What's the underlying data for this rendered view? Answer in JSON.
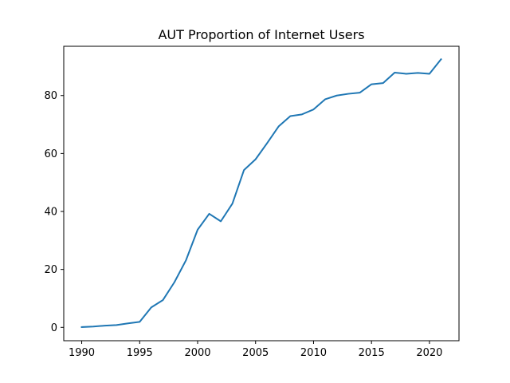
{
  "chart_data": {
    "type": "line",
    "title": "AUT Proportion of Internet Users",
    "xlabel": "",
    "ylabel": "",
    "xlim": [
      1988.45,
      2022.55
    ],
    "ylim": [
      -4.6,
      97.0
    ],
    "xticks": [
      1990,
      1995,
      2000,
      2005,
      2010,
      2015,
      2020
    ],
    "yticks": [
      0,
      20,
      40,
      60,
      80
    ],
    "grid": false,
    "legend": "none",
    "line_color": "#1f77b4",
    "series": [
      {
        "x": [
          1990,
          1991,
          1992,
          1993,
          1994,
          1995,
          1996,
          1997,
          1998,
          1999,
          2000,
          2001,
          2002,
          2003,
          2004,
          2005,
          2006,
          2007,
          2008,
          2009,
          2010,
          2011,
          2012,
          2013,
          2014,
          2015,
          2016,
          2017,
          2018,
          2019,
          2020,
          2021
        ],
        "y": [
          0.1,
          0.3,
          0.6,
          0.8,
          1.4,
          1.9,
          6.9,
          9.4,
          15.6,
          23.2,
          33.7,
          39.2,
          36.6,
          42.7,
          54.3,
          58.0,
          63.6,
          69.4,
          72.9,
          73.5,
          75.2,
          78.7,
          80.0,
          80.6,
          81.0,
          83.9,
          84.3,
          87.9,
          87.5,
          87.8,
          87.5,
          92.5
        ]
      }
    ]
  }
}
